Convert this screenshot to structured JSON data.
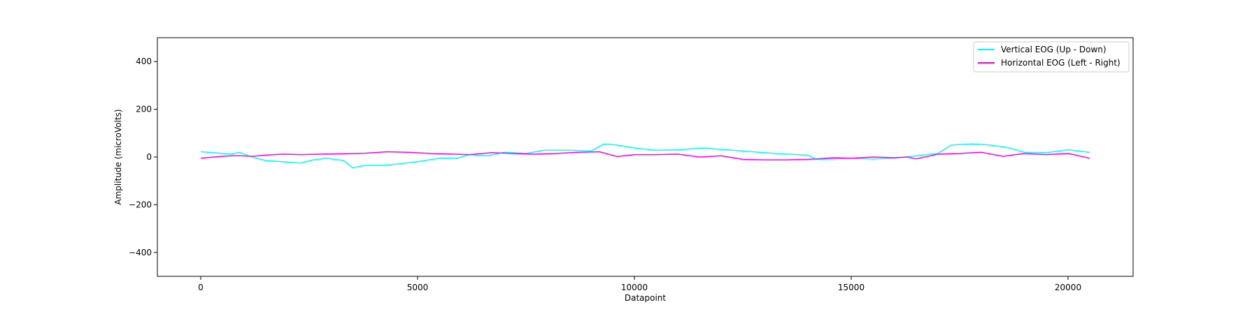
{
  "chart_data": {
    "type": "line",
    "title": "",
    "xlabel": "Datapoint",
    "ylabel": "Amplitude (microVolts)",
    "xlim": [
      -1000,
      21500
    ],
    "ylim": [
      -500,
      500
    ],
    "xticks": [
      0,
      5000,
      10000,
      15000,
      20000
    ],
    "yticks": [
      -400,
      -200,
      0,
      200,
      400
    ],
    "ytick_labels": [
      "−400",
      "−200",
      "0",
      "200",
      "400"
    ],
    "grid": false,
    "legend_position": "top-right",
    "series": [
      {
        "name": "Vertical EOG (Up - Down)",
        "color": "#00ffff",
        "x": [
          0,
          300,
          700,
          900,
          1100,
          1500,
          1900,
          2300,
          2600,
          2900,
          3300,
          3500,
          3800,
          4200,
          4500,
          5000,
          5500,
          5900,
          6200,
          6600,
          7000,
          7500,
          7900,
          8500,
          9000,
          9300,
          9600,
          10000,
          10500,
          11000,
          11600,
          12000,
          12500,
          13000,
          13500,
          14000,
          14200,
          14600,
          15000,
          15500,
          16000,
          16500,
          17000,
          17300,
          17800,
          18200,
          18600,
          19000,
          19500,
          20000,
          20500
        ],
        "y": [
          22,
          18,
          12,
          20,
          5,
          -15,
          -20,
          -25,
          -12,
          -5,
          -15,
          -45,
          -35,
          -35,
          -30,
          -20,
          -5,
          -5,
          10,
          5,
          20,
          15,
          28,
          28,
          25,
          55,
          50,
          38,
          28,
          30,
          38,
          32,
          25,
          18,
          12,
          8,
          -10,
          -8,
          -5,
          -8,
          -5,
          5,
          15,
          50,
          55,
          50,
          40,
          20,
          18,
          30,
          20
        ]
      },
      {
        "name": "Horizontal EOG (Left - Right)",
        "color": "#ff00ff",
        "x": [
          0,
          300,
          700,
          900,
          1200,
          1500,
          1900,
          2300,
          2800,
          3300,
          3800,
          4300,
          4800,
          5300,
          5800,
          6200,
          6700,
          7200,
          7700,
          8200,
          8700,
          9200,
          9600,
          10000,
          10500,
          11000,
          11500,
          12000,
          12500,
          13000,
          13500,
          14000,
          14200,
          14600,
          15000,
          15500,
          16000,
          16300,
          16500,
          17000,
          17500,
          18000,
          18500,
          19000,
          19500,
          20000,
          20500
        ],
        "y": [
          -5,
          0,
          5,
          5,
          3,
          8,
          12,
          10,
          12,
          14,
          16,
          22,
          20,
          15,
          12,
          10,
          18,
          15,
          12,
          15,
          20,
          22,
          2,
          10,
          10,
          12,
          0,
          5,
          -10,
          -12,
          -12,
          -10,
          -8,
          -3,
          -5,
          0,
          -3,
          0,
          -8,
          12,
          15,
          20,
          3,
          15,
          10,
          15,
          -5
        ]
      }
    ]
  }
}
